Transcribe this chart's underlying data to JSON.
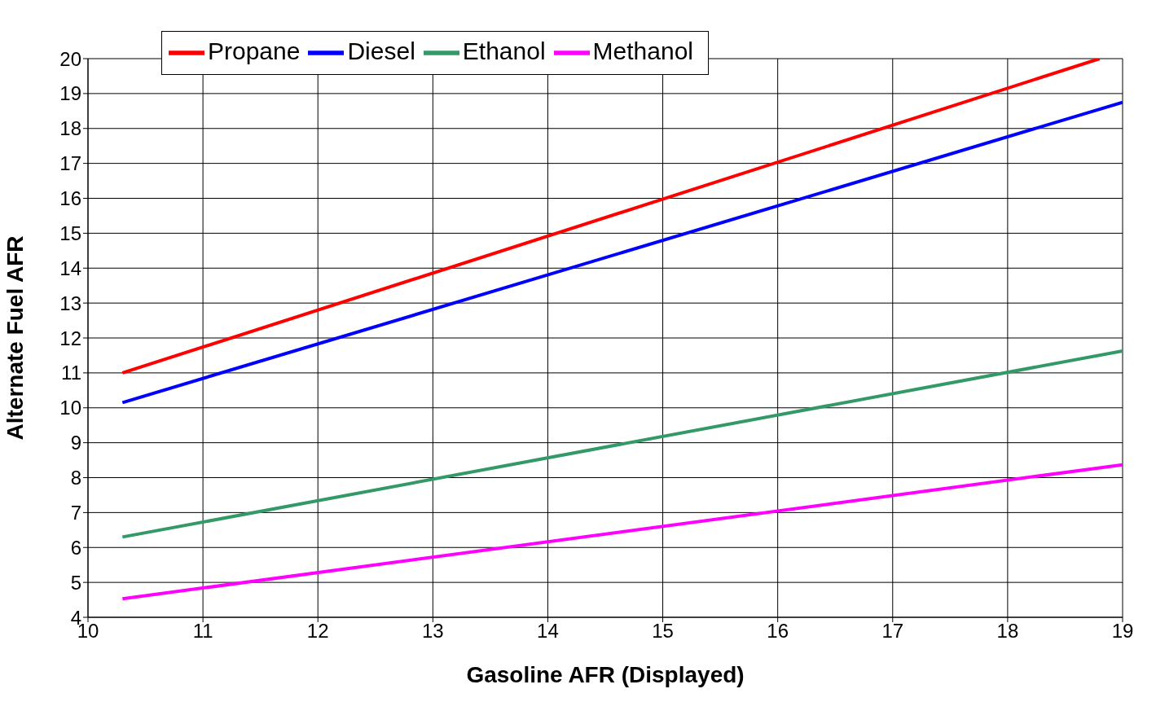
{
  "chart_data": {
    "type": "line",
    "xlabel": "Gasoline AFR (Displayed)",
    "ylabel": "Alternate Fuel AFR",
    "xlim": [
      10,
      19
    ],
    "xticks": [
      10,
      11,
      12,
      13,
      14,
      15,
      16,
      17,
      18,
      19
    ],
    "ylim": [
      4,
      20
    ],
    "yticks": [
      4,
      5,
      6,
      7,
      8,
      9,
      10,
      11,
      12,
      13,
      14,
      15,
      16,
      17,
      18,
      19,
      20
    ],
    "grid": true,
    "legend": "top left",
    "marker": "none",
    "line_style": "solid",
    "series": [
      {
        "name": "Propane",
        "color": "#ff0000",
        "x": [
          10.3,
          18.8
        ],
        "values": [
          11.0,
          20.0
        ]
      },
      {
        "name": "Diesel",
        "color": "#0000ff",
        "x": [
          10.3,
          19
        ],
        "values": [
          10.15,
          18.75
        ]
      },
      {
        "name": "Ethanol",
        "color": "#339966",
        "x": [
          10.3,
          19
        ],
        "values": [
          6.3,
          11.63
        ]
      },
      {
        "name": "Methanol",
        "color": "#ff00ff",
        "x": [
          10.3,
          19
        ],
        "values": [
          4.53,
          8.37
        ]
      }
    ]
  }
}
